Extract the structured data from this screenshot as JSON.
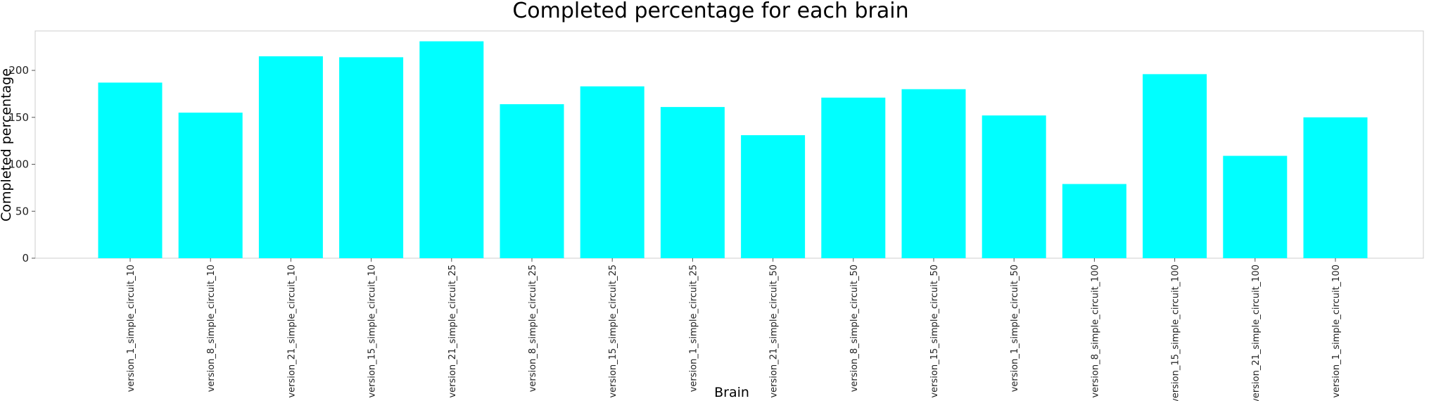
{
  "chart_data": {
    "type": "bar",
    "title": "Completed percentage for each brain",
    "xlabel": "Brain",
    "ylabel": "Completed percentage",
    "categories": [
      "version_1_simple_circuit_10",
      "version_8_simple_circuit_10",
      "version_21_simple_circuit_10",
      "version_15_simple_circuit_10",
      "version_21_simple_circuit_25",
      "version_8_simple_circuit_25",
      "version_15_simple_circuit_25",
      "version_1_simple_circuit_25",
      "version_21_simple_circuit_50",
      "version_8_simple_circuit_50",
      "version_15_simple_circuit_50",
      "version_1_simple_circuit_50",
      "version_8_simple_circuit_100",
      "version_15_simple_circuit_100",
      "version_21_simple_circuit_100",
      "version_1_simple_circuit_100"
    ],
    "values": [
      187,
      155,
      215,
      214,
      231,
      164,
      183,
      161,
      131,
      171,
      180,
      152,
      79,
      196,
      109,
      150
    ],
    "yticks": [
      0,
      50,
      100,
      150,
      200
    ],
    "ylim": [
      0,
      242
    ],
    "bar_color": "#00ffff",
    "grid": false,
    "legend": "none"
  }
}
